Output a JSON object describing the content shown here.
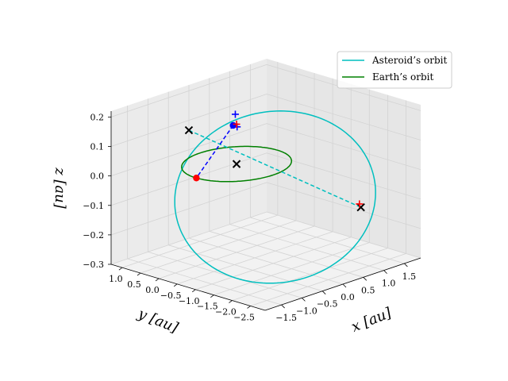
{
  "chart_data": {
    "type": "3d-line",
    "title": "",
    "view": {
      "elev": 20,
      "azim": -135
    },
    "axes": {
      "x": {
        "label": "x [au]",
        "range": [
          -1.9,
          1.9
        ],
        "ticks": [
          -1.5,
          -1.0,
          -0.5,
          0.0,
          0.5,
          1.0,
          1.5
        ],
        "tick_labels": [
          "−1.5",
          "−1.0",
          "−0.5",
          "0.0",
          "0.5",
          "1.0",
          "1.5"
        ]
      },
      "y": {
        "label": "y [au]",
        "range": [
          -2.9,
          1.3
        ],
        "ticks": [
          1.0,
          0.5,
          0.0,
          -0.5,
          -1.0,
          -1.5,
          -2.0,
          -2.5
        ],
        "tick_labels": [
          "1.0",
          "0.5",
          "0.0",
          "−0.5",
          "−1.0",
          "−1.5",
          "−2.0",
          "−2.5"
        ]
      },
      "z": {
        "label": "z [au]",
        "range": [
          -0.3,
          0.22
        ],
        "ticks": [
          0.2,
          0.1,
          0.0,
          -0.1,
          -0.2,
          -0.3
        ],
        "tick_labels": [
          "0.2",
          "0.1",
          "0.0",
          "−0.1",
          "−0.2",
          "−0.3"
        ]
      }
    },
    "grid": true,
    "legend": {
      "position": "upper-right",
      "entries": [
        {
          "label": "Asteroid’s orbit",
          "color": "#00bfbf"
        },
        {
          "label": "Earth’s orbit",
          "color": "#008000"
        }
      ]
    },
    "series": [
      {
        "name": "Asteroid’s orbit",
        "kind": "ellipse",
        "color": "#00bfbf",
        "center": [
          0.19,
          -0.84,
          -0.09
        ],
        "axis_u": [
          -1.27,
          1.31,
          -0.03
        ],
        "axis_v": [
          -0.8,
          -1.13,
          -0.21
        ]
      },
      {
        "name": "Earth’s orbit",
        "kind": "ellipse",
        "color": "#008000",
        "center": [
          0,
          0,
          0
        ],
        "axis_u": [
          1,
          0,
          0
        ],
        "axis_v": [
          0,
          1,
          0
        ]
      }
    ],
    "points": [
      {
        "name": "sun",
        "marker": "x",
        "color": "#000000",
        "xyz": [
          0,
          0,
          0
        ]
      },
      {
        "name": "asteroid-marker-1",
        "marker": "x",
        "color": "#000000",
        "xyz": [
          -0.61,
          0.62,
          0.12
        ]
      },
      {
        "name": "asteroid-marker-2",
        "marker": "x",
        "color": "#000000",
        "xyz": [
          1.46,
          -1.76,
          -0.15
        ]
      },
      {
        "name": "earth-red-dot",
        "marker": "dot",
        "color": "#ff0000",
        "xyz": [
          -1.0,
          -0.02,
          0.0
        ]
      },
      {
        "name": "blue-dot",
        "marker": "dot",
        "color": "#0000ff",
        "xyz": [
          0.99,
          1.2,
          0.04
        ]
      },
      {
        "name": "blue-plus-1",
        "marker": "+",
        "color": "#0000ff",
        "xyz": [
          0.99,
          1.14,
          0.08
        ]
      },
      {
        "name": "blue-plus-2",
        "marker": "+",
        "color": "#0000ff",
        "xyz": [
          0.98,
          1.08,
          0.04
        ]
      },
      {
        "name": "red-plus-1",
        "marker": "+",
        "color": "#ff0000",
        "xyz": [
          0.85,
          0.95,
          0.06
        ]
      },
      {
        "name": "red-plus-2",
        "marker": "+",
        "color": "#ff0000",
        "xyz": [
          1.46,
          -1.72,
          -0.14
        ]
      }
    ],
    "lines": [
      {
        "name": "asteroid-sightline",
        "style": "dashed",
        "color": "#00bfbf",
        "from": [
          -0.61,
          0.62,
          0.12
        ],
        "to": [
          1.46,
          -1.76,
          -0.15
        ]
      },
      {
        "name": "earth-sightline",
        "style": "dashed",
        "color": "#0000ff",
        "from": [
          0.99,
          1.2,
          0.04
        ],
        "to": [
          -1.0,
          -0.02,
          0.0
        ]
      }
    ]
  }
}
